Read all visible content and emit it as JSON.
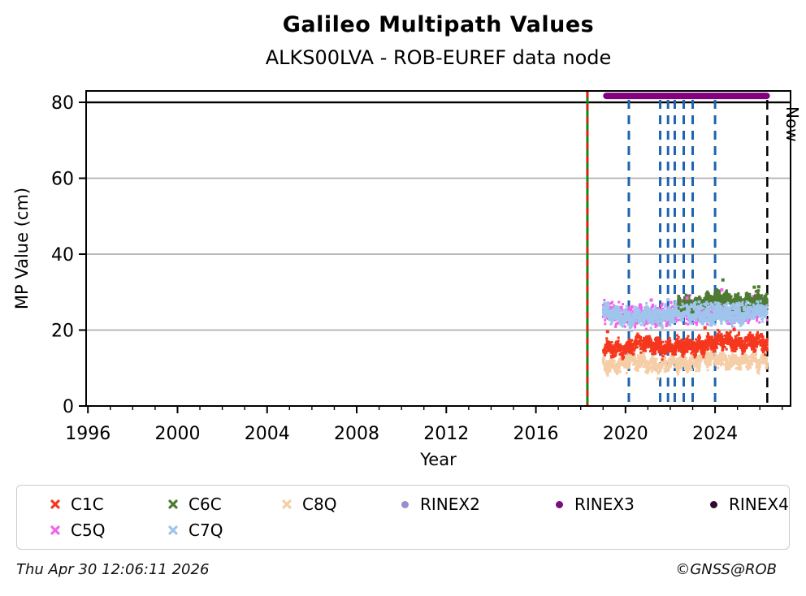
{
  "header": {
    "title": "Galileo Multipath Values",
    "subtitle": "ALKS00LVA - ROB-EUREF data node"
  },
  "footer": {
    "timestamp": "Thu Apr 30 12:06:11 2026",
    "credit": "©GNSS@ROB"
  },
  "chart_data": {
    "type": "scatter",
    "title": "Galileo Multipath Values",
    "subtitle": "ALKS00LVA - ROB-EUREF data node",
    "xlabel": "Year",
    "ylabel": "MP Value (cm)",
    "xlim": [
      1995.92,
      2027.37
    ],
    "ylim": [
      0,
      83
    ],
    "xticks": [
      1996,
      2000,
      2004,
      2008,
      2012,
      2016,
      2020,
      2024
    ],
    "x_minor_from": 1996,
    "x_minor_to": 2027,
    "yticks": [
      0,
      20,
      40,
      60,
      80
    ],
    "grid_values": [
      20,
      40,
      60
    ],
    "grid_color": "#b0b0b0",
    "top_rule_value": 80,
    "legend_position": "bottom",
    "series": [
      {
        "name": "C1C",
        "color": "#f5371e",
        "marker": "x",
        "x_start": 2019.0,
        "x_end": 2026.33,
        "y_start": 15.2,
        "y_end": 16.9,
        "spread": 1.9,
        "density": 1500
      },
      {
        "name": "C5Q",
        "color": "#f263ee",
        "marker": "x",
        "x_start": 2019.0,
        "x_end": 2026.33,
        "y_start": 24.2,
        "y_end": 24.9,
        "spread": 2.7,
        "density": 800
      },
      {
        "name": "C6C",
        "color": "#4e7b32",
        "marker": "x",
        "x_start": 2022.35,
        "x_end": 2026.33,
        "y_start": 27.2,
        "y_end": 28.3,
        "spread": 1.5,
        "density": 900
      },
      {
        "name": "C7Q",
        "color": "#9fc5ec",
        "marker": "x",
        "x_start": 2019.0,
        "x_end": 2026.33,
        "y_start": 23.8,
        "y_end": 24.5,
        "spread": 2.0,
        "density": 1700
      },
      {
        "name": "C8Q",
        "color": "#f5cda6",
        "marker": "x",
        "x_start": 2019.0,
        "x_end": 2026.33,
        "y_start": 10.9,
        "y_end": 12.4,
        "spread": 1.9,
        "density": 1300
      }
    ],
    "draw_order": [
      "C8Q",
      "C5Q",
      "C1C",
      "C7Q",
      "C6C"
    ],
    "overdraw_patches": [
      {
        "series": "C7Q",
        "x_start": 2022.4,
        "x_end": 2026.3,
        "y": 26.2,
        "spread": 1.2,
        "density": 150
      }
    ],
    "outliers": [
      {
        "series": "C1C",
        "x": 2019.2,
        "y": 19.6
      },
      {
        "series": "C1C",
        "x": 2023.55,
        "y": 20.6
      },
      {
        "series": "C1C",
        "x": 2024.85,
        "y": 20.1
      },
      {
        "series": "C5Q",
        "x": 2021.15,
        "y": 27.9
      },
      {
        "series": "C5Q",
        "x": 2022.75,
        "y": 28.4
      },
      {
        "series": "C5Q",
        "x": 2024.3,
        "y": 30.6
      },
      {
        "series": "C6C",
        "x": 2024.35,
        "y": 33.2
      },
      {
        "series": "C6C",
        "x": 2025.75,
        "y": 31.3
      },
      {
        "series": "C6C",
        "x": 2025.95,
        "y": 31.4
      },
      {
        "series": "C7Q",
        "x": 2021.9,
        "y": 28.0
      },
      {
        "series": "C8Q",
        "x": 2021.45,
        "y": 7.2
      }
    ],
    "annotations": {
      "receiver_line": {
        "x": 2018.3,
        "color_solid": "#108a10",
        "color_dash": "#e02015",
        "style": "green-red-dashed"
      },
      "event_lines": {
        "x_values": [
          2020.15,
          2021.55,
          2021.9,
          2022.2,
          2022.6,
          2023.0,
          2024.0
        ],
        "color": "#1e64ae",
        "style": "dashed"
      },
      "now_line": {
        "x": 2026.33,
        "label": "Now",
        "color": "#000000",
        "style": "dashed"
      },
      "rinex_bar": {
        "series": "RINEX3",
        "x_start": 2019.0,
        "x_end": 2026.45,
        "y": 81.7,
        "color": "#800080"
      }
    },
    "legend": [
      {
        "label": "C1C",
        "color": "#f5371e",
        "marker": "x"
      },
      {
        "label": "C6C",
        "color": "#4e7b32",
        "marker": "x"
      },
      {
        "label": "C8Q",
        "color": "#f5cda6",
        "marker": "x"
      },
      {
        "label": "RINEX2",
        "color": "#968fcd",
        "marker": "o"
      },
      {
        "label": "RINEX3",
        "color": "#7c0c7c",
        "marker": "o"
      },
      {
        "label": "RINEX4",
        "color": "#2d0b30",
        "marker": "o"
      }
    ],
    "legend_row2": [
      {
        "label": "C5Q",
        "color": "#f263ee",
        "marker": "x"
      },
      {
        "label": "C7Q",
        "color": "#9fc5ec",
        "marker": "x"
      }
    ]
  }
}
